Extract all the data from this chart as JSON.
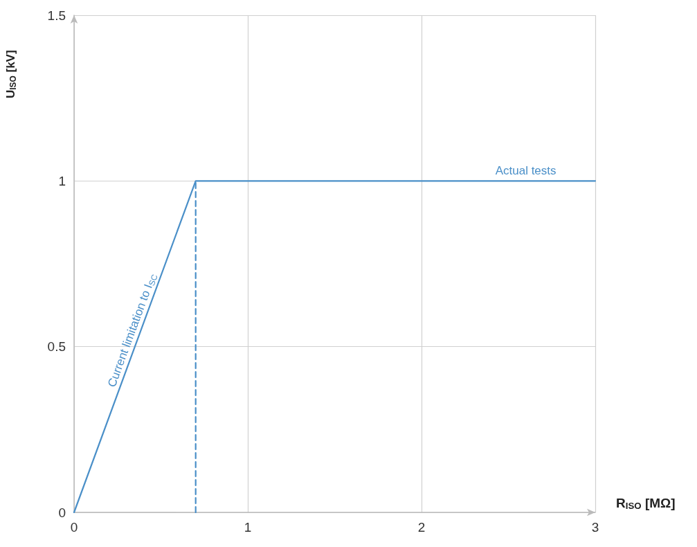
{
  "chart_data": {
    "type": "line",
    "xlabel": "R$_{ISO}$ [MΩ]",
    "ylabel": "U$_{ISO}$ [kV]",
    "xlim": [
      0,
      3
    ],
    "xticks": [
      0,
      1,
      2,
      3
    ],
    "ylim": [
      0,
      1.5
    ],
    "yticks": [
      0,
      0.5,
      1,
      1.5
    ],
    "grid": true,
    "marker": "none",
    "series": [
      {
        "color": "#4a8fc8",
        "x": [
          0,
          0.7,
          3
        ],
        "values": [
          0,
          1,
          1
        ],
        "line_style": "solid"
      },
      {
        "color": "#4a8fc8",
        "x": [
          0.7,
          0.7
        ],
        "values": [
          0,
          1
        ],
        "line_style": "dashed"
      }
    ],
    "annotations": [
      {
        "text": "Current limitation to I$_{SC}$",
        "x": 0.37,
        "y": 0.53
      },
      {
        "text": "Actual tests",
        "x": 2.6,
        "y": 1
      }
    ]
  }
}
